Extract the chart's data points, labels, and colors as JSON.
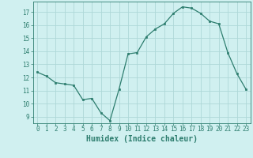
{
  "x": [
    0,
    1,
    2,
    3,
    4,
    5,
    6,
    7,
    8,
    9,
    10,
    11,
    12,
    13,
    14,
    15,
    16,
    17,
    18,
    19,
    20,
    21,
    22,
    23
  ],
  "y": [
    12.4,
    12.1,
    11.6,
    11.5,
    11.4,
    10.3,
    10.4,
    9.3,
    8.7,
    11.1,
    13.8,
    13.9,
    15.1,
    15.7,
    16.1,
    16.9,
    17.4,
    17.3,
    16.9,
    16.3,
    16.1,
    13.9,
    12.3,
    11.1
  ],
  "line_color": "#2d7d6e",
  "marker": "s",
  "marker_size": 2.0,
  "bg_color": "#d0f0f0",
  "grid_color": "#aed8d8",
  "xlabel": "Humidex (Indice chaleur)",
  "xlabel_color": "#2d7d6e",
  "xlabel_fontsize": 7,
  "tick_color": "#2d7d6e",
  "tick_fontsize": 5.5,
  "ylim": [
    8.5,
    17.8
  ],
  "yticks": [
    9,
    10,
    11,
    12,
    13,
    14,
    15,
    16,
    17
  ],
  "xlim": [
    -0.5,
    23.5
  ],
  "xticks": [
    0,
    1,
    2,
    3,
    4,
    5,
    6,
    7,
    8,
    9,
    10,
    11,
    12,
    13,
    14,
    15,
    16,
    17,
    18,
    19,
    20,
    21,
    22,
    23
  ]
}
